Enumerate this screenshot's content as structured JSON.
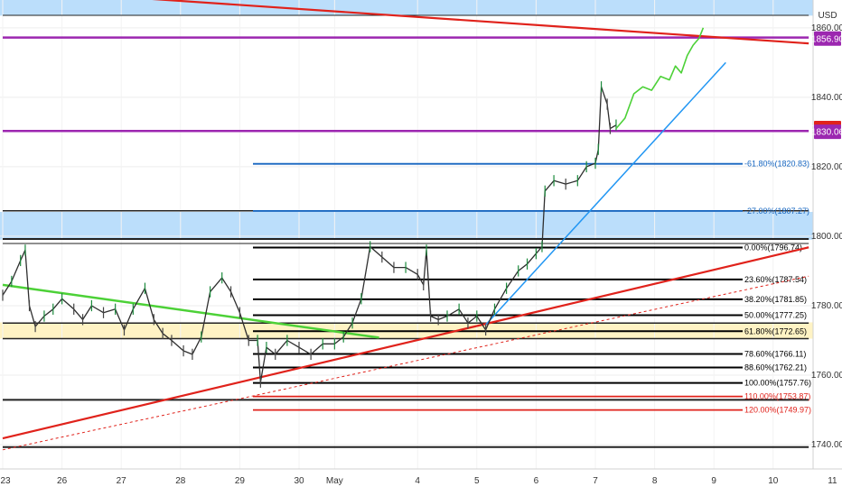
{
  "chart_data": {
    "type": "line",
    "currency": "USD",
    "ylim": [
      1733,
      1868
    ],
    "xlim": [
      0,
      13.6
    ],
    "x_ticks": [
      {
        "label": "23",
        "x": 0
      },
      {
        "label": "26",
        "x": 1
      },
      {
        "label": "27",
        "x": 2
      },
      {
        "label": "28",
        "x": 3
      },
      {
        "label": "29",
        "x": 4
      },
      {
        "label": "30",
        "x": 5
      },
      {
        "label": "May",
        "x": 5.6
      },
      {
        "label": "4",
        "x": 7
      },
      {
        "label": "5",
        "x": 8
      },
      {
        "label": "6",
        "x": 9
      },
      {
        "label": "7",
        "x": 10
      },
      {
        "label": "8",
        "x": 11
      },
      {
        "label": "9",
        "x": 12
      },
      {
        "label": "10",
        "x": 13
      },
      {
        "label": "11",
        "x": 14
      }
    ],
    "y_ticks": [
      {
        "label": "1740.00",
        "value": 1740
      },
      {
        "label": "1760.00",
        "value": 1760
      },
      {
        "label": "1780.00",
        "value": 1780
      },
      {
        "label": "1800.00",
        "value": 1800
      },
      {
        "label": "1820.00",
        "value": 1820
      },
      {
        "label": "1840.00",
        "value": 1840
      },
      {
        "label": "1860.00",
        "value": 1860
      }
    ],
    "price_badges": [
      {
        "label": "1856.90",
        "value": 1856.9,
        "color": "#9c27b0"
      },
      {
        "label": "1831.15",
        "value": 1831.15,
        "color": "#e0221b"
      },
      {
        "label": "1830.06",
        "value": 1830.06,
        "color": "#9c27b0"
      }
    ],
    "zones": [
      {
        "from": 1868,
        "to": 1863.5,
        "color": "#bbdefb"
      },
      {
        "from": 1807,
        "to": 1799,
        "color": "#bbdefb"
      },
      {
        "from": 1775.2,
        "to": 1770.5,
        "color": "#fff3c4"
      }
    ],
    "hlines": [
      {
        "value": 1863.6,
        "x1": 0,
        "x2": 13.6,
        "color": "#222222",
        "width": 1
      },
      {
        "value": 1857.2,
        "x1": 0,
        "x2": 13.6,
        "color": "#9c27b0",
        "width": 2.5
      },
      {
        "value": 1830.3,
        "x1": 0,
        "x2": 13.6,
        "color": "#9c27b0",
        "width": 2.5
      },
      {
        "value": 1807.3,
        "x1": 0,
        "x2": 13.6,
        "color": "#222222",
        "width": 1.5
      },
      {
        "value": 1799.2,
        "x1": 0,
        "x2": 13.6,
        "color": "#222222",
        "width": 2
      },
      {
        "value": 1797.9,
        "x1": 0,
        "x2": 13.6,
        "color": "#222222",
        "width": 1
      },
      {
        "value": 1775.0,
        "x1": 0,
        "x2": 13.6,
        "color": "#222222",
        "width": 1.5
      },
      {
        "value": 1770.5,
        "x1": 0,
        "x2": 13.6,
        "color": "#222222",
        "width": 1.5
      },
      {
        "value": 1752.9,
        "x1": 0,
        "x2": 13.6,
        "color": "#222222",
        "width": 2
      },
      {
        "value": 1739.3,
        "x1": 0,
        "x2": 13.6,
        "color": "#222222",
        "width": 2
      }
    ],
    "fib_levels": [
      {
        "label": "-61.80%(1820.83)",
        "value": 1820.83,
        "color": "#1565c0"
      },
      {
        "label": "-27.00%(1807.27)",
        "value": 1807.27,
        "color": "#1565c0"
      },
      {
        "label": "0.00%(1796.74)",
        "value": 1796.74,
        "color": "#000000"
      },
      {
        "label": "23.60%(1787.54)",
        "value": 1787.54,
        "color": "#000000"
      },
      {
        "label": "38.20%(1781.85)",
        "value": 1781.85,
        "color": "#000000"
      },
      {
        "label": "50.00%(1777.25)",
        "value": 1777.25,
        "color": "#000000"
      },
      {
        "label": "61.80%(1772.65)",
        "value": 1772.65,
        "color": "#000000"
      },
      {
        "label": "78.60%(1766.11)",
        "value": 1766.11,
        "color": "#000000"
      },
      {
        "label": "88.60%(1762.21)",
        "value": 1762.21,
        "color": "#000000"
      },
      {
        "label": "100.00%(1757.76)",
        "value": 1757.76,
        "color": "#000000"
      },
      {
        "label": "110.00%(1753.87)",
        "value": 1753.87,
        "color": "#e0221b"
      },
      {
        "label": "120.00%(1749.97)",
        "value": 1749.97,
        "color": "#e0221b"
      }
    ],
    "trendlines": [
      {
        "x1": 1.9,
        "y1": 1869,
        "x2": 13.6,
        "y2": 1855.5,
        "color": "#e0221b",
        "width": 2.2,
        "dash": false
      },
      {
        "x1": 0,
        "y1": 1741.8,
        "x2": 13.6,
        "y2": 1796.8,
        "color": "#e0221b",
        "width": 2.2,
        "dash": false
      },
      {
        "x1": 0,
        "y1": 1738.5,
        "x2": 13.6,
        "y2": 1788.5,
        "color": "#e0221b",
        "width": 1,
        "dash": true
      },
      {
        "x1": 8.15,
        "y1": 1774.5,
        "x2": 12.2,
        "y2": 1850,
        "color": "#2196f3",
        "width": 1.5,
        "dash": false
      },
      {
        "x1": 0,
        "y1": 1786,
        "x2": 6.35,
        "y2": 1770.8,
        "color": "#4cd137",
        "width": 2.5,
        "dash": false
      }
    ],
    "price_path": [
      [
        0,
        1783
      ],
      [
        0.15,
        1787
      ],
      [
        0.3,
        1793
      ],
      [
        0.38,
        1796
      ],
      [
        0.45,
        1780
      ],
      [
        0.55,
        1774
      ],
      [
        0.7,
        1777
      ],
      [
        0.85,
        1779
      ],
      [
        1.0,
        1782
      ],
      [
        1.2,
        1779
      ],
      [
        1.35,
        1776
      ],
      [
        1.5,
        1780
      ],
      [
        1.7,
        1778
      ],
      [
        1.9,
        1779
      ],
      [
        2.05,
        1773
      ],
      [
        2.2,
        1779
      ],
      [
        2.4,
        1785
      ],
      [
        2.55,
        1776
      ],
      [
        2.7,
        1772
      ],
      [
        2.85,
        1770
      ],
      [
        3.05,
        1767
      ],
      [
        3.2,
        1766
      ],
      [
        3.35,
        1771
      ],
      [
        3.5,
        1784
      ],
      [
        3.7,
        1788
      ],
      [
        3.85,
        1784
      ],
      [
        4.0,
        1778
      ],
      [
        4.15,
        1770
      ],
      [
        4.3,
        1770
      ],
      [
        4.35,
        1758
      ],
      [
        4.45,
        1768
      ],
      [
        4.6,
        1766
      ],
      [
        4.8,
        1770
      ],
      [
        5.0,
        1768
      ],
      [
        5.2,
        1766
      ],
      [
        5.4,
        1769
      ],
      [
        5.6,
        1769
      ],
      [
        5.75,
        1771
      ],
      [
        5.9,
        1775
      ],
      [
        6.05,
        1782
      ],
      [
        6.2,
        1797
      ],
      [
        6.4,
        1794
      ],
      [
        6.6,
        1791
      ],
      [
        6.8,
        1791
      ],
      [
        7.0,
        1789
      ],
      [
        7.1,
        1786
      ],
      [
        7.15,
        1796
      ],
      [
        7.22,
        1777
      ],
      [
        7.35,
        1776
      ],
      [
        7.5,
        1777
      ],
      [
        7.7,
        1779
      ],
      [
        7.85,
        1775
      ],
      [
        8.0,
        1777
      ],
      [
        8.15,
        1773
      ],
      [
        8.3,
        1779
      ],
      [
        8.5,
        1785
      ],
      [
        8.7,
        1790
      ],
      [
        8.85,
        1792
      ],
      [
        9.0,
        1795
      ],
      [
        9.1,
        1797
      ],
      [
        9.15,
        1813
      ],
      [
        9.3,
        1816
      ],
      [
        9.5,
        1815
      ],
      [
        9.7,
        1816
      ],
      [
        9.85,
        1820
      ],
      [
        10.0,
        1821
      ],
      [
        10.05,
        1825
      ],
      [
        10.1,
        1843
      ],
      [
        10.2,
        1838
      ],
      [
        10.25,
        1831
      ],
      [
        10.35,
        1832
      ]
    ],
    "projection_path": [
      [
        10.35,
        1831
      ],
      [
        10.5,
        1834
      ],
      [
        10.65,
        1841
      ],
      [
        10.8,
        1843
      ],
      [
        10.95,
        1842
      ],
      [
        11.1,
        1846
      ],
      [
        11.25,
        1845
      ],
      [
        11.35,
        1849
      ],
      [
        11.45,
        1847
      ],
      [
        11.55,
        1852
      ],
      [
        11.65,
        1855
      ],
      [
        11.75,
        1857
      ],
      [
        11.82,
        1860
      ]
    ]
  }
}
